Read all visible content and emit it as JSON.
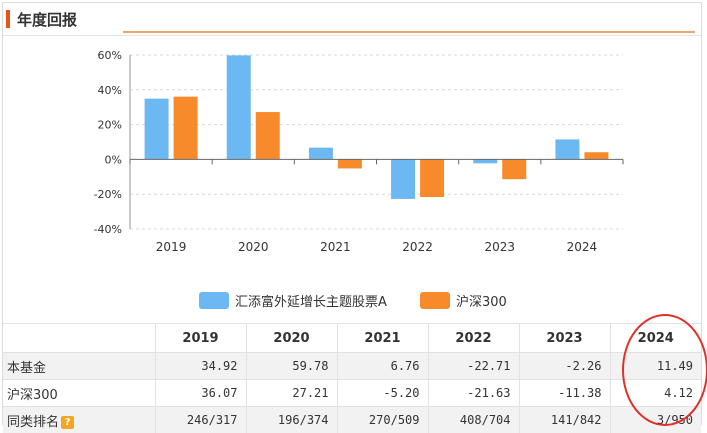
{
  "header": {
    "title": "年度回报"
  },
  "colors": {
    "fund": "#6cb8f2",
    "index": "#f78b2b",
    "accent": "#e8541e",
    "highlight": "#e0302a"
  },
  "chart_data": {
    "type": "bar",
    "categories": [
      "2019",
      "2020",
      "2021",
      "2022",
      "2023",
      "2024"
    ],
    "series": [
      {
        "name": "汇添富外延增长主题股票A",
        "values": [
          34.92,
          59.78,
          6.76,
          -22.71,
          -2.26,
          11.49
        ]
      },
      {
        "name": "沪深300",
        "values": [
          36.07,
          27.21,
          -5.2,
          -21.63,
          -11.38,
          4.12
        ]
      }
    ],
    "yticks": [
      "60%",
      "40%",
      "20%",
      "0%",
      "-20%",
      "-40%"
    ],
    "ylim": [
      -40,
      60
    ],
    "grid": true,
    "legend": "bottom"
  },
  "table": {
    "headers": [
      "",
      "2019",
      "2020",
      "2021",
      "2022",
      "2023",
      "2024"
    ],
    "rows": [
      {
        "label": "本基金",
        "cells": [
          "34.92",
          "59.78",
          "6.76",
          "-22.71",
          "-2.26",
          "11.49"
        ]
      },
      {
        "label": "沪深300",
        "cells": [
          "36.07",
          "27.21",
          "-5.20",
          "-21.63",
          "-11.38",
          "4.12"
        ]
      },
      {
        "label": "同类排名",
        "help": "?",
        "cells": [
          "246/317",
          "196/374",
          "270/509",
          "408/704",
          "141/842",
          "3/950"
        ]
      }
    ]
  }
}
